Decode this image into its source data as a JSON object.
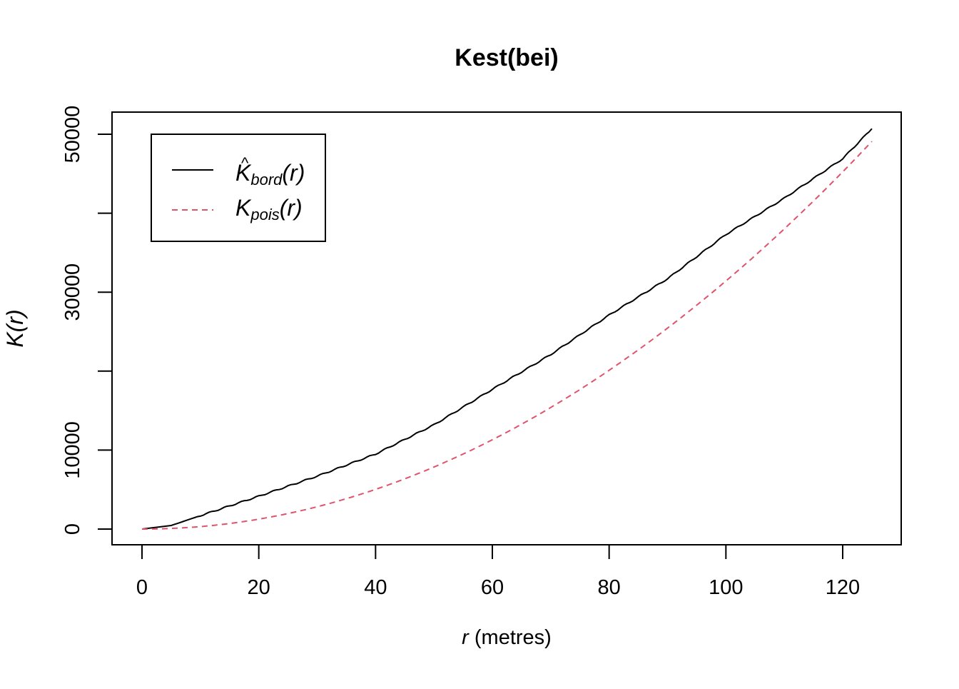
{
  "chart_data": {
    "type": "line",
    "title": "Kest(bei)",
    "xlabel_var": "r",
    "xlabel_unit": " (metres)",
    "ylabel_main": "K",
    "ylabel_arg": "(r)",
    "xlim": [
      0,
      125
    ],
    "ylim": [
      0,
      50000
    ],
    "x_ticks": [
      "0",
      "20",
      "40",
      "60",
      "80",
      "100",
      "120"
    ],
    "x_tick_values": [
      0,
      20,
      40,
      60,
      80,
      100,
      120
    ],
    "y_ticks": [
      "0",
      "10000",
      "",
      "30000",
      "",
      "50000"
    ],
    "y_tick_values": [
      0,
      10000,
      20000,
      30000,
      40000,
      50000
    ],
    "grid": false,
    "legend_placement": "top-left",
    "series": [
      {
        "name": "K_bord(r)",
        "legend_main": "K",
        "legend_hat": "^",
        "legend_sub": "bord",
        "legend_arg": "(r)",
        "color": "#000000",
        "dash": "solid",
        "x": [
          0,
          5,
          10,
          20,
          30,
          40,
          50,
          60,
          70,
          80,
          90,
          100,
          110,
          120,
          125
        ],
        "y": [
          0,
          450,
          1700,
          4160,
          6700,
          9500,
          13200,
          17700,
          22100,
          27100,
          31700,
          37300,
          41900,
          46900,
          50700
        ]
      },
      {
        "name": "K_pois(r)",
        "legend_main": "K",
        "legend_sub": "pois",
        "legend_arg": "(r)",
        "color": "#DF536B",
        "dash": "dashed",
        "formula": "pi*r^2"
      }
    ]
  }
}
